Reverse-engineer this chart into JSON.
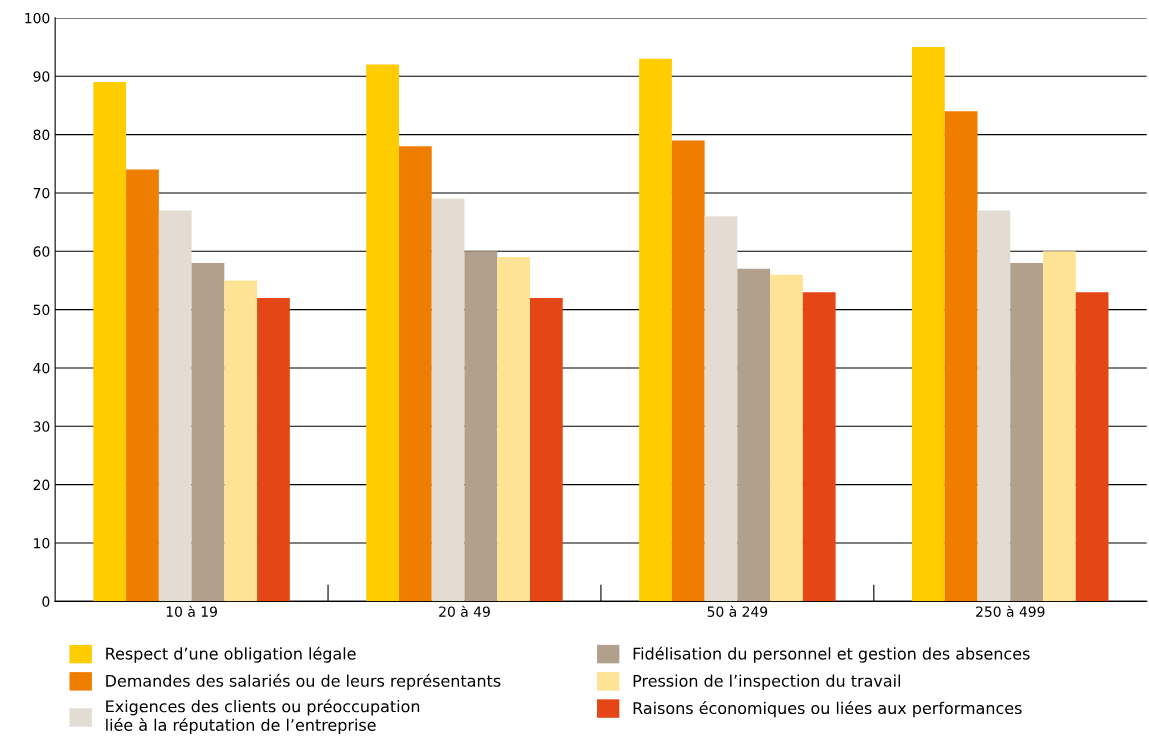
{
  "chart_data": {
    "type": "bar",
    "categories": [
      "10 à 19",
      "20 à 49",
      "50 à 249",
      "250 à 499"
    ],
    "series": [
      {
        "name": "Respect d’une obligation légale",
        "color": "#ffcc00",
        "values": [
          89,
          92,
          93,
          95
        ]
      },
      {
        "name": "Demandes des salariés ou de leurs représentants",
        "color": "#ee7d00",
        "values": [
          74,
          78,
          79,
          84
        ]
      },
      {
        "name": "Exigences des clients ou préoccupation\nliée à la réputation de l’entreprise",
        "color": "#e2dcd3",
        "values": [
          67,
          69,
          66,
          67
        ]
      },
      {
        "name": "Fidélisation du personnel et gestion des absences",
        "color": "#b0a08c",
        "values": [
          58,
          60,
          57,
          58
        ]
      },
      {
        "name": "Pression de l’inspection du travail",
        "color": "#ffe394",
        "values": [
          55,
          59,
          56,
          60
        ]
      },
      {
        "name": "Raisons économiques ou liées aux performances",
        "color": "#e54616",
        "values": [
          52,
          52,
          53,
          53
        ]
      }
    ],
    "ylim": [
      0,
      100
    ],
    "yticks": [
      0,
      10,
      20,
      30,
      40,
      50,
      60,
      70,
      80,
      90,
      100
    ],
    "grid": "y",
    "legend": "bottom"
  }
}
